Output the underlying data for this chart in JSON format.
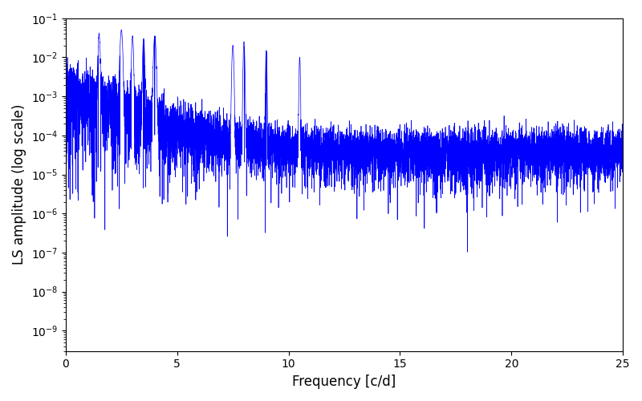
{
  "title": "",
  "xlabel": "Frequency [c/d]",
  "ylabel": "LS amplitude (log scale)",
  "xlim": [
    0,
    25
  ],
  "ylim": [
    3e-10,
    0.1
  ],
  "line_color": "#0000ff",
  "line_width": 0.5,
  "yscale": "log",
  "figsize": [
    8.0,
    5.0
  ],
  "dpi": 100,
  "freq_min": 0.0,
  "freq_max": 25.0,
  "n_points": 8000,
  "seed": 12345,
  "background_color": "#ffffff"
}
